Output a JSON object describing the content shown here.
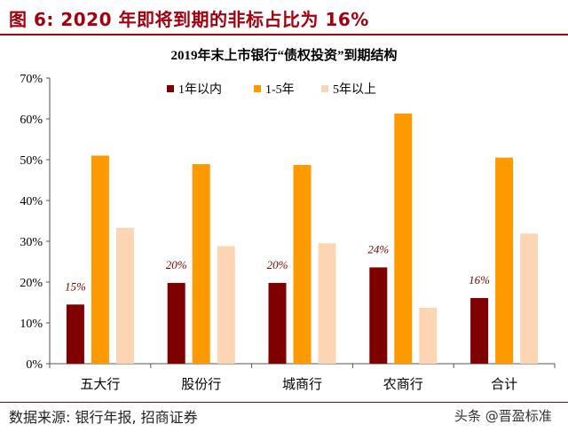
{
  "header": {
    "figure_title": "图 6:  2020 年即将到期的非标占比为 16%"
  },
  "chart_data": {
    "type": "bar",
    "title": "2019年末上市银行“债权投资”到期结构",
    "categories": [
      "五大行",
      "股份行",
      "城商行",
      "农商行",
      "合计"
    ],
    "series": [
      {
        "name": "1年以内",
        "color": "#7f0000",
        "values": [
          14.5,
          19.8,
          19.8,
          23.6,
          16.1
        ]
      },
      {
        "name": "1-5年",
        "color": "#ff9900",
        "values": [
          51.0,
          48.9,
          48.7,
          61.3,
          50.5
        ]
      },
      {
        "name": "5年以上",
        "color": "#fcd5b4",
        "values": [
          33.3,
          28.8,
          29.5,
          13.7,
          31.9
        ]
      }
    ],
    "data_labels": [
      "15%",
      "20%",
      "20%",
      "24%",
      "16%"
    ],
    "yticks": [
      "0%",
      "10%",
      "20%",
      "30%",
      "40%",
      "50%",
      "60%",
      "70%"
    ],
    "ylim": [
      0,
      70
    ],
    "legend_position": "top-left",
    "grid": false
  },
  "footer": {
    "source": "数据来源: 银行年报, 招商证券",
    "watermark": "头条 @晋盈标准"
  }
}
